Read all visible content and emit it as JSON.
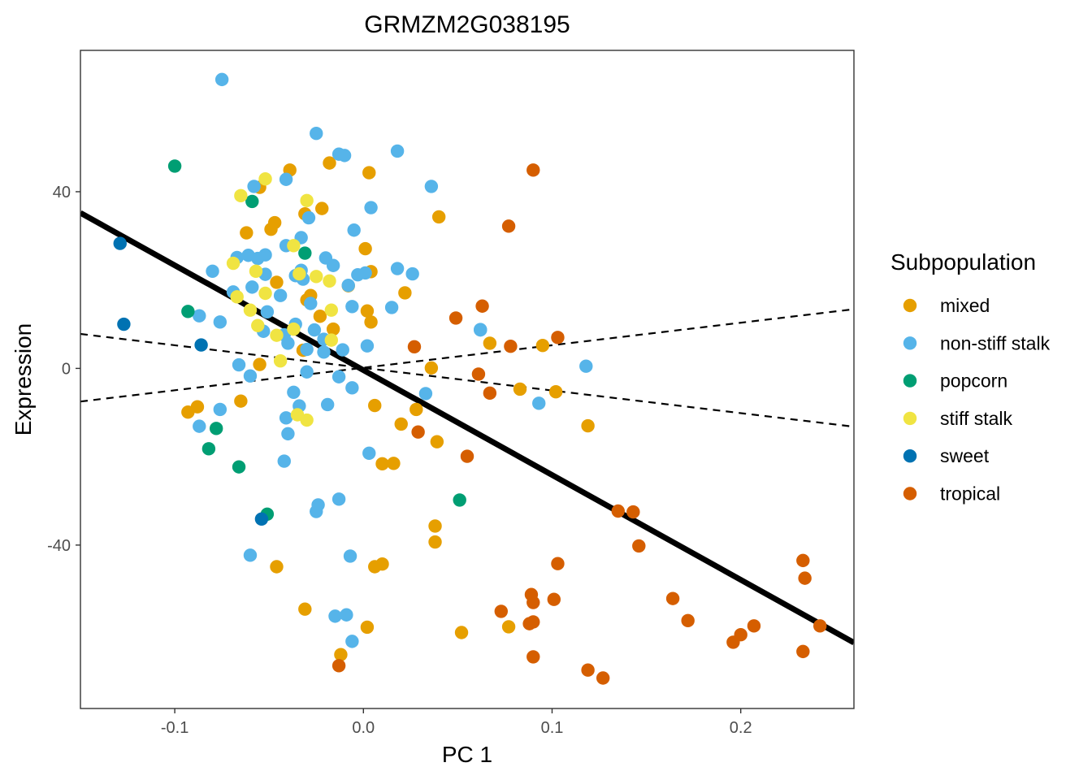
{
  "chart_data": {
    "type": "scatter",
    "title": "GRMZM2G038195",
    "xlabel": "PC 1",
    "ylabel": "Expression",
    "xlim": [
      -0.15,
      0.26
    ],
    "ylim": [
      -77,
      72
    ],
    "xticks": [
      -0.1,
      0.0,
      0.1,
      0.2
    ],
    "xtick_labels": [
      "-0.1",
      "0.0",
      "0.1",
      "0.2"
    ],
    "yticks": [
      -40,
      0,
      40
    ],
    "ytick_labels": [
      "-40",
      "0",
      "40"
    ],
    "grid": false,
    "legend": {
      "title": "Subpopulation",
      "position": "right",
      "entries": [
        {
          "name": "mixed",
          "color": "#E69F00"
        },
        {
          "name": "non-stiff stalk",
          "color": "#56B4E9"
        },
        {
          "name": "popcorn",
          "color": "#009E73"
        },
        {
          "name": "stiff stalk",
          "color": "#F0E442"
        },
        {
          "name": "sweet",
          "color": "#0072B2"
        },
        {
          "name": "tropical",
          "color": "#D55E00"
        }
      ]
    },
    "lines": [
      {
        "name": "fit",
        "style": "solid",
        "x": [
          -0.15,
          0.26
        ],
        "y": [
          35.2,
          -62.1
        ]
      },
      {
        "name": "upper",
        "style": "dashed",
        "x": [
          -0.15,
          0.26
        ],
        "y": [
          -7.5,
          13.4
        ]
      },
      {
        "name": "lower",
        "style": "dashed",
        "x": [
          -0.15,
          0.26
        ],
        "y": [
          7.8,
          -13.2
        ]
      }
    ],
    "series": [
      {
        "name": "mixed",
        "color": "#E69F00",
        "points": [
          [
            -0.039,
            44.9
          ],
          [
            -0.018,
            46.5
          ],
          [
            0.003,
            44.3
          ],
          [
            0.04,
            34.3
          ],
          [
            -0.047,
            33.0
          ],
          [
            -0.062,
            30.7
          ],
          [
            -0.049,
            31.5
          ],
          [
            -0.031,
            35.0
          ],
          [
            -0.022,
            36.2
          ],
          [
            0.001,
            27.1
          ],
          [
            -0.046,
            19.5
          ],
          [
            -0.028,
            16.5
          ],
          [
            0.002,
            13.0
          ],
          [
            0.004,
            10.5
          ],
          [
            -0.023,
            11.8
          ],
          [
            -0.016,
            8.9
          ],
          [
            -0.03,
            15.5
          ],
          [
            -0.008,
            18.7
          ],
          [
            0.022,
            17.1
          ],
          [
            0.067,
            5.7
          ],
          [
            0.095,
            5.2
          ],
          [
            0.036,
            0.1
          ],
          [
            0.006,
            -8.4
          ],
          [
            0.028,
            -9.3
          ],
          [
            -0.065,
            -7.4
          ],
          [
            0.083,
            -4.7
          ],
          [
            0.102,
            -5.3
          ],
          [
            -0.088,
            -8.7
          ],
          [
            -0.093,
            -9.9
          ],
          [
            0.119,
            -13.0
          ],
          [
            0.02,
            -12.6
          ],
          [
            0.039,
            -16.6
          ],
          [
            0.01,
            -21.6
          ],
          [
            0.016,
            -21.5
          ],
          [
            0.038,
            -35.7
          ],
          [
            0.038,
            -39.3
          ],
          [
            0.01,
            -44.3
          ],
          [
            0.006,
            -44.9
          ],
          [
            -0.046,
            -44.9
          ],
          [
            -0.031,
            -54.5
          ],
          [
            0.002,
            -58.6
          ],
          [
            -0.012,
            -64.8
          ],
          [
            0.052,
            -59.8
          ],
          [
            0.077,
            -58.5
          ],
          [
            0.004,
            21.9
          ],
          [
            -0.055,
            41.0
          ],
          [
            -0.055,
            0.9
          ],
          [
            -0.032,
            4.1
          ]
        ]
      },
      {
        "name": "non-stiff stalk",
        "color": "#56B4E9",
        "points": [
          [
            -0.075,
            65.4
          ],
          [
            -0.025,
            53.2
          ],
          [
            -0.013,
            48.5
          ],
          [
            -0.01,
            48.2
          ],
          [
            0.018,
            49.2
          ],
          [
            0.036,
            41.2
          ],
          [
            -0.058,
            41.2
          ],
          [
            -0.041,
            42.8
          ],
          [
            0.004,
            36.4
          ],
          [
            -0.029,
            34.1
          ],
          [
            -0.005,
            31.3
          ],
          [
            -0.041,
            27.8
          ],
          [
            -0.067,
            25.1
          ],
          [
            -0.061,
            25.6
          ],
          [
            -0.056,
            24.9
          ],
          [
            -0.052,
            25.7
          ],
          [
            -0.033,
            29.6
          ],
          [
            -0.02,
            25.0
          ],
          [
            -0.016,
            23.3
          ],
          [
            -0.033,
            22.2
          ],
          [
            -0.052,
            21.3
          ],
          [
            -0.036,
            21.0
          ],
          [
            -0.003,
            21.2
          ],
          [
            0.001,
            21.6
          ],
          [
            0.018,
            22.6
          ],
          [
            0.026,
            21.4
          ],
          [
            -0.08,
            22.0
          ],
          [
            -0.032,
            20.2
          ],
          [
            -0.008,
            18.8
          ],
          [
            -0.059,
            18.4
          ],
          [
            -0.069,
            17.3
          ],
          [
            -0.044,
            16.5
          ],
          [
            -0.028,
            14.7
          ],
          [
            -0.006,
            14.0
          ],
          [
            0.015,
            13.8
          ],
          [
            -0.087,
            11.9
          ],
          [
            -0.051,
            12.8
          ],
          [
            -0.076,
            10.5
          ],
          [
            -0.036,
            10.0
          ],
          [
            -0.026,
            8.7
          ],
          [
            -0.053,
            8.4
          ],
          [
            -0.042,
            7.6
          ],
          [
            -0.021,
            6.6
          ],
          [
            -0.04,
            5.7
          ],
          [
            -0.03,
            4.3
          ],
          [
            -0.021,
            3.7
          ],
          [
            -0.011,
            4.2
          ],
          [
            0.002,
            5.1
          ],
          [
            -0.066,
            0.8
          ],
          [
            -0.06,
            -1.7
          ],
          [
            -0.03,
            -0.8
          ],
          [
            -0.013,
            -1.9
          ],
          [
            -0.006,
            -4.4
          ],
          [
            -0.037,
            -5.4
          ],
          [
            -0.019,
            -8.2
          ],
          [
            -0.034,
            -8.5
          ],
          [
            -0.076,
            -9.3
          ],
          [
            -0.041,
            -11.2
          ],
          [
            -0.087,
            -13.1
          ],
          [
            -0.04,
            -14.8
          ],
          [
            0.003,
            -19.2
          ],
          [
            -0.042,
            -21.0
          ],
          [
            -0.013,
            -29.6
          ],
          [
            -0.024,
            -30.9
          ],
          [
            -0.025,
            -32.4
          ],
          [
            -0.06,
            -42.3
          ],
          [
            -0.007,
            -42.5
          ],
          [
            -0.015,
            -56.1
          ],
          [
            -0.009,
            -55.8
          ],
          [
            -0.006,
            -61.8
          ],
          [
            0.062,
            8.8
          ],
          [
            0.093,
            -7.9
          ],
          [
            0.118,
            0.5
          ],
          [
            0.033,
            -5.7
          ],
          [
            0.062,
            8.7
          ]
        ]
      },
      {
        "name": "popcorn",
        "color": "#009E73",
        "points": [
          [
            -0.1,
            45.8
          ],
          [
            -0.059,
            37.8
          ],
          [
            -0.031,
            26.1
          ],
          [
            -0.093,
            12.9
          ],
          [
            -0.078,
            -13.6
          ],
          [
            -0.082,
            -18.2
          ],
          [
            -0.066,
            -22.3
          ],
          [
            -0.051,
            -33.0
          ],
          [
            0.051,
            -29.8
          ]
        ]
      },
      {
        "name": "stiff stalk",
        "color": "#F0E442",
        "points": [
          [
            -0.052,
            42.9
          ],
          [
            -0.065,
            39.1
          ],
          [
            -0.03,
            38.0
          ],
          [
            -0.037,
            27.8
          ],
          [
            -0.069,
            23.8
          ],
          [
            -0.057,
            22.0
          ],
          [
            -0.034,
            21.4
          ],
          [
            -0.025,
            20.8
          ],
          [
            -0.018,
            19.8
          ],
          [
            -0.052,
            17.0
          ],
          [
            -0.06,
            13.2
          ],
          [
            -0.017,
            13.2
          ],
          [
            -0.056,
            9.7
          ],
          [
            -0.046,
            7.5
          ],
          [
            -0.037,
            8.9
          ],
          [
            -0.017,
            6.4
          ],
          [
            -0.044,
            1.7
          ],
          [
            -0.035,
            -10.5
          ],
          [
            -0.03,
            -11.7
          ],
          [
            -0.067,
            16.2
          ]
        ]
      },
      {
        "name": "sweet",
        "color": "#0072B2",
        "points": [
          [
            -0.129,
            28.3
          ],
          [
            -0.127,
            10.0
          ],
          [
            -0.086,
            5.3
          ],
          [
            -0.054,
            -34.1
          ]
        ]
      },
      {
        "name": "tropical",
        "color": "#D55E00",
        "points": [
          [
            0.09,
            44.9
          ],
          [
            0.077,
            32.2
          ],
          [
            0.063,
            14.1
          ],
          [
            0.049,
            11.4
          ],
          [
            0.103,
            7.0
          ],
          [
            0.078,
            5.0
          ],
          [
            0.027,
            4.9
          ],
          [
            0.061,
            -1.3
          ],
          [
            0.067,
            -5.6
          ],
          [
            0.029,
            -14.4
          ],
          [
            0.055,
            -19.9
          ],
          [
            0.135,
            -32.3
          ],
          [
            0.143,
            -32.5
          ],
          [
            0.146,
            -40.2
          ],
          [
            0.103,
            -44.2
          ],
          [
            0.089,
            -51.2
          ],
          [
            0.09,
            -53.0
          ],
          [
            0.101,
            -52.3
          ],
          [
            0.073,
            -55.0
          ],
          [
            0.088,
            -57.8
          ],
          [
            0.09,
            -57.4
          ],
          [
            0.164,
            -52.1
          ],
          [
            0.172,
            -57.1
          ],
          [
            0.233,
            -43.5
          ],
          [
            0.234,
            -47.5
          ],
          [
            0.207,
            -58.3
          ],
          [
            0.2,
            -60.3
          ],
          [
            0.196,
            -62.0
          ],
          [
            0.242,
            -58.3
          ],
          [
            0.233,
            -64.1
          ],
          [
            0.09,
            -65.3
          ],
          [
            0.119,
            -68.3
          ],
          [
            0.127,
            -70.1
          ],
          [
            -0.013,
            -67.3
          ]
        ]
      }
    ]
  }
}
